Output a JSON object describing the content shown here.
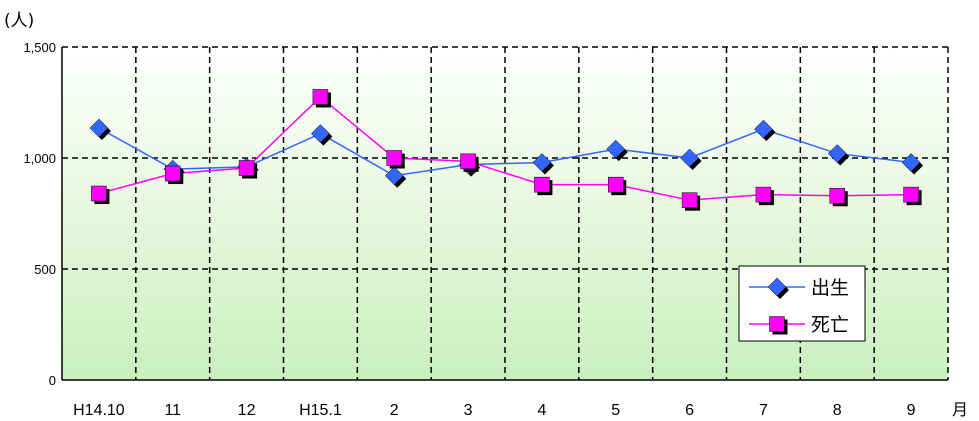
{
  "chart_data": {
    "type": "line",
    "ylabel": "(人)",
    "xunit": "月",
    "categories": [
      "H14.10",
      "11",
      "12",
      "H15.1",
      "2",
      "3",
      "4",
      "5",
      "6",
      "7",
      "8",
      "9"
    ],
    "ylim": [
      0,
      1500
    ],
    "yticks": [
      0,
      500,
      1000,
      1500
    ],
    "ytick_labels": [
      "0",
      "500",
      "1,000",
      "1,500"
    ],
    "grid": true,
    "legend_position": "bottom-right",
    "series": [
      {
        "name": "出生",
        "color": "#3366ff",
        "marker": "diamond",
        "values": [
          1135,
          950,
          960,
          1110,
          920,
          970,
          980,
          1040,
          1000,
          1130,
          1020,
          980
        ]
      },
      {
        "name": "死亡",
        "color": "#ff00ff",
        "marker": "square",
        "values": [
          840,
          930,
          955,
          1275,
          1000,
          985,
          880,
          880,
          810,
          835,
          830,
          835
        ]
      }
    ]
  }
}
